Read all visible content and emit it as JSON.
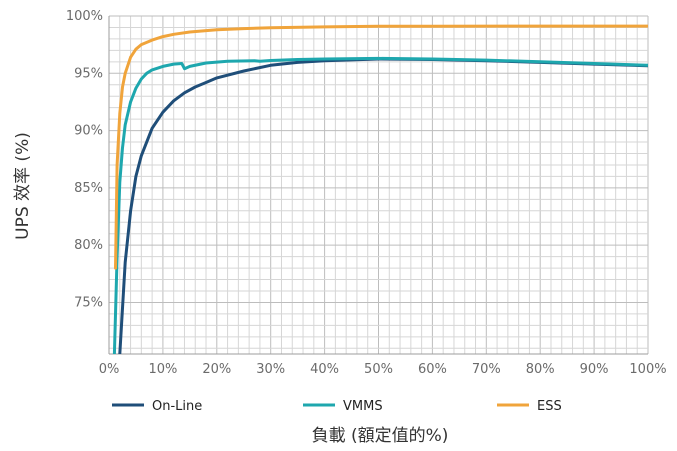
{
  "chart_data": {
    "type": "line",
    "title": "",
    "xlabel": "負載 (額定值的%)",
    "ylabel": "UPS 效率 (%)",
    "xlim": [
      0,
      100
    ],
    "ylim": [
      70.5,
      100
    ],
    "x_ticks": [
      "0%",
      "10%",
      "20%",
      "30%",
      "40%",
      "50%",
      "60%",
      "70%",
      "80%",
      "90%",
      "100%"
    ],
    "y_ticks": [
      "75%",
      "80%",
      "85%",
      "90%",
      "95%",
      "100%"
    ],
    "y_tick_values": [
      75,
      80,
      85,
      90,
      95,
      100
    ],
    "grid": true,
    "legend_position": "bottom",
    "series": [
      {
        "name": "On-Line",
        "color": "#1f4e79",
        "points": [
          [
            2,
            70.5
          ],
          [
            3,
            78.5
          ],
          [
            4,
            83
          ],
          [
            5,
            86
          ],
          [
            6,
            87.8
          ],
          [
            8,
            90.2
          ],
          [
            10,
            91.6
          ],
          [
            12,
            92.6
          ],
          [
            14,
            93.3
          ],
          [
            16,
            93.8
          ],
          [
            18,
            94.2
          ],
          [
            20,
            94.6
          ],
          [
            25,
            95.2
          ],
          [
            30,
            95.7
          ],
          [
            35,
            95.95
          ],
          [
            40,
            96.1
          ],
          [
            50,
            96.25
          ],
          [
            60,
            96.2
          ],
          [
            70,
            96.1
          ],
          [
            80,
            95.95
          ],
          [
            90,
            95.8
          ],
          [
            100,
            95.65
          ]
        ]
      },
      {
        "name": "VMMS",
        "color": "#1ea7ae",
        "points": [
          [
            1,
            70.5
          ],
          [
            1.5,
            79
          ],
          [
            2,
            85.5
          ],
          [
            2.5,
            88.5
          ],
          [
            3,
            90.5
          ],
          [
            4,
            92.5
          ],
          [
            5,
            93.7
          ],
          [
            6,
            94.5
          ],
          [
            7,
            95
          ],
          [
            8,
            95.3
          ],
          [
            10,
            95.6
          ],
          [
            12,
            95.8
          ],
          [
            13.5,
            95.85
          ],
          [
            14,
            95.4
          ],
          [
            15,
            95.6
          ],
          [
            18,
            95.9
          ],
          [
            22,
            96.05
          ],
          [
            27,
            96.1
          ],
          [
            28,
            96.05
          ],
          [
            30,
            96.12
          ],
          [
            35,
            96.2
          ],
          [
            40,
            96.25
          ],
          [
            50,
            96.3
          ],
          [
            60,
            96.25
          ],
          [
            70,
            96.15
          ],
          [
            80,
            96.0
          ],
          [
            90,
            95.85
          ],
          [
            100,
            95.7
          ]
        ]
      },
      {
        "name": "ESS",
        "color": "#f0a43b",
        "points": [
          [
            1.2,
            78
          ],
          [
            1.5,
            87
          ],
          [
            2,
            91.5
          ],
          [
            2.5,
            93.8
          ],
          [
            3,
            95
          ],
          [
            4,
            96.4
          ],
          [
            5,
            97.1
          ],
          [
            6,
            97.5
          ],
          [
            8,
            97.9
          ],
          [
            10,
            98.2
          ],
          [
            12,
            98.4
          ],
          [
            15,
            98.6
          ],
          [
            20,
            98.8
          ],
          [
            25,
            98.9
          ],
          [
            30,
            98.98
          ],
          [
            40,
            99.05
          ],
          [
            50,
            99.1
          ],
          [
            60,
            99.1
          ],
          [
            80,
            99.12
          ],
          [
            100,
            99.12
          ]
        ]
      }
    ]
  }
}
